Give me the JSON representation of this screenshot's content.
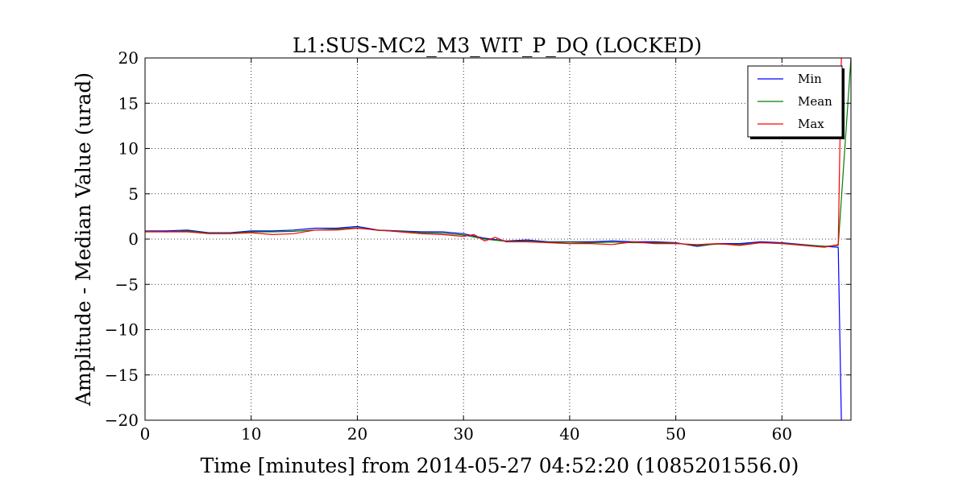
{
  "chart_data": {
    "type": "line",
    "title": "L1:SUS-MC2_M3_WIT_P_DQ (LOCKED)",
    "xlabel": "Time [minutes] from 2014-05-27 04:52:20 (1085201556.0)",
    "ylabel": "Amplitude - Median Value (urad)",
    "xlim": [
      0,
      66.5
    ],
    "ylim": [
      -20,
      20
    ],
    "xticks": [
      0,
      10,
      20,
      30,
      40,
      50,
      60
    ],
    "yticks": [
      -20,
      -15,
      -10,
      -5,
      0,
      5,
      10,
      15,
      20
    ],
    "xtick_labels": [
      "0",
      "10",
      "20",
      "30",
      "40",
      "50",
      "60"
    ],
    "ytick_labels": [
      "−20",
      "−15",
      "−10",
      "−5",
      "0",
      "5",
      "10",
      "15",
      "20"
    ],
    "grid": true,
    "legend_position": "top-right",
    "series": [
      {
        "name": "Min",
        "color": "#0000ff",
        "x": [
          0,
          2,
          4,
          6,
          8,
          10,
          12,
          14,
          16,
          18,
          20,
          22,
          24,
          26,
          28,
          30,
          32,
          34,
          36,
          38,
          40,
          42,
          44,
          46,
          48,
          50,
          52,
          54,
          56,
          58,
          60,
          62,
          64,
          65.3,
          65.6
        ],
        "y": [
          0.9,
          0.9,
          1.0,
          0.7,
          0.7,
          0.9,
          0.9,
          1.0,
          1.2,
          1.2,
          1.4,
          1.0,
          0.9,
          0.8,
          0.8,
          0.6,
          0.1,
          -0.2,
          -0.1,
          -0.3,
          -0.3,
          -0.3,
          -0.2,
          -0.3,
          -0.3,
          -0.4,
          -0.8,
          -0.5,
          -0.5,
          -0.3,
          -0.4,
          -0.6,
          -0.8,
          -0.9,
          -20
        ]
      },
      {
        "name": "Mean",
        "color": "#008000",
        "x": [
          0,
          2,
          4,
          6,
          8,
          10,
          12,
          14,
          16,
          18,
          20,
          22,
          24,
          26,
          28,
          30,
          32,
          34,
          36,
          38,
          40,
          42,
          44,
          46,
          48,
          50,
          52,
          54,
          56,
          58,
          60,
          62,
          64,
          65.3,
          66.5
        ],
        "y": [
          0.85,
          0.8,
          0.9,
          0.65,
          0.65,
          0.8,
          0.8,
          0.85,
          1.0,
          1.1,
          1.25,
          0.95,
          0.85,
          0.7,
          0.65,
          0.45,
          0.0,
          -0.25,
          -0.2,
          -0.35,
          -0.35,
          -0.4,
          -0.35,
          -0.4,
          -0.4,
          -0.45,
          -0.7,
          -0.55,
          -0.6,
          -0.4,
          -0.45,
          -0.65,
          -0.8,
          -0.7,
          20
        ]
      },
      {
        "name": "Max",
        "color": "#ff0000",
        "x": [
          0,
          2,
          4,
          6,
          8,
          10,
          12,
          14,
          16,
          18,
          20,
          22,
          24,
          26,
          28,
          30,
          31,
          32,
          33,
          34,
          36,
          38,
          40,
          42,
          44,
          46,
          48,
          50,
          52,
          54,
          56,
          58,
          60,
          62,
          64,
          65.3,
          65.6
        ],
        "y": [
          0.8,
          0.8,
          0.8,
          0.6,
          0.6,
          0.7,
          0.5,
          0.6,
          1.0,
          1.0,
          1.2,
          1.0,
          0.8,
          0.6,
          0.5,
          0.3,
          0.5,
          -0.2,
          0.2,
          -0.3,
          -0.3,
          -0.4,
          -0.5,
          -0.5,
          -0.6,
          -0.3,
          -0.5,
          -0.5,
          -0.6,
          -0.5,
          -0.7,
          -0.4,
          -0.5,
          -0.7,
          -0.9,
          -0.6,
          20
        ]
      }
    ]
  }
}
